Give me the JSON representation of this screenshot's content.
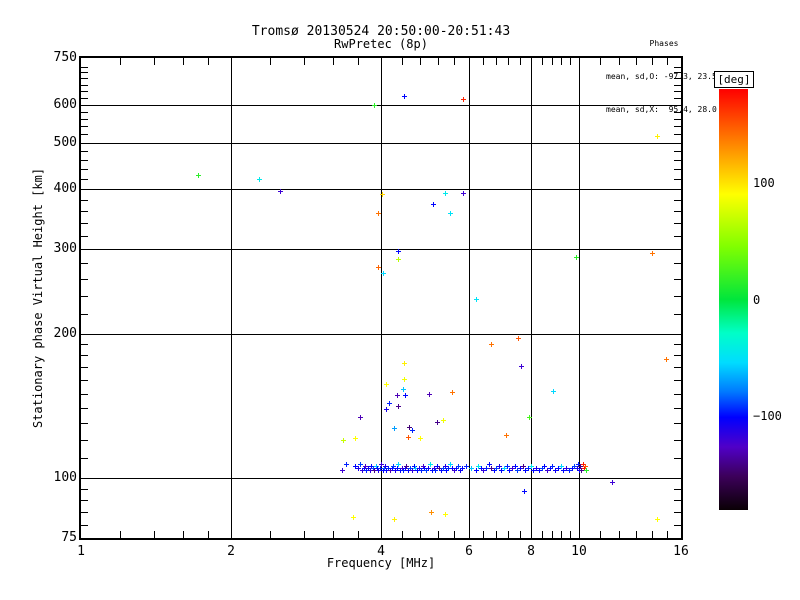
{
  "title": {
    "line1": "Tromsø 20130524 20:50:00-20:51:43",
    "line2": "RwPretec (8p)"
  },
  "stats": {
    "header": "Phases",
    "line_o": "mean, sd,O: -97.3, 23.5",
    "line_x": "mean, sd,X:  95.4, 28.0"
  },
  "chart_data": {
    "type": "scatter",
    "title": "Tromsø 20130524 20:50:00-20:51:43",
    "subtitle": "RwPretec (8p)",
    "xlabel": "Frequency [MHz]",
    "ylabel": "Stationary phase Virtual Height [km]",
    "x_scale": "log",
    "y_scale": "log",
    "xlim": [
      1,
      16
    ],
    "ylim": [
      75,
      750
    ],
    "x_ticks_major": [
      1,
      2,
      4,
      6,
      8,
      10,
      16
    ],
    "x_ticks_minor": [
      1.2,
      1.4,
      1.6,
      1.8,
      2.4,
      2.8,
      3.2,
      3.6,
      4.4,
      4.8,
      5.2,
      5.6,
      6.4,
      6.8,
      7.2,
      7.6,
      8.4,
      8.8,
      9.2,
      9.6,
      11,
      12,
      13,
      14,
      15
    ],
    "y_ticks_major": [
      75,
      100,
      200,
      300,
      400,
      500,
      600,
      750
    ],
    "y_ticks_minor": [
      80,
      85,
      90,
      95,
      110,
      120,
      130,
      140,
      150,
      160,
      170,
      180,
      190,
      220,
      240,
      260,
      280,
      320,
      340,
      360,
      380,
      420,
      440,
      460,
      480,
      520,
      540,
      560,
      580,
      620,
      640,
      660,
      680,
      700,
      720
    ],
    "grid_x": [
      2,
      4,
      6,
      8,
      10
    ],
    "grid_y": [
      100,
      200,
      300,
      400,
      500,
      600
    ],
    "colorbar": {
      "label": "[deg]",
      "min": -180,
      "max": 180,
      "ticks": [
        100,
        0,
        -100
      ],
      "stops": [
        [
          0.0,
          "#ff0000"
        ],
        [
          0.125,
          "#ff8000"
        ],
        [
          0.25,
          "#ffff00"
        ],
        [
          0.375,
          "#80ff00"
        ],
        [
          0.5,
          "#00e63c"
        ],
        [
          0.58,
          "#00ffc8"
        ],
        [
          0.65,
          "#00dcff"
        ],
        [
          0.72,
          "#0078ff"
        ],
        [
          0.78,
          "#0000ff"
        ],
        [
          0.85,
          "#5000c8"
        ],
        [
          0.92,
          "#3c005a"
        ],
        [
          1.0,
          "#0a0005"
        ]
      ]
    },
    "points_format": [
      "frequency_MHz",
      "virtual_height_km",
      "phase_deg"
    ],
    "points": [
      [
        1.72,
        428,
        15
      ],
      [
        2.28,
        420,
        -45
      ],
      [
        2.51,
        397,
        -120
      ],
      [
        4.45,
        625,
        -100
      ],
      [
        5.83,
        617,
        168
      ],
      [
        3.88,
        600,
        15
      ],
      [
        14.3,
        515,
        95
      ],
      [
        14.0,
        295,
        140
      ],
      [
        9.83,
        289,
        15
      ],
      [
        14.9,
        177,
        140
      ],
      [
        4.02,
        390,
        105
      ],
      [
        5.38,
        392,
        -45
      ],
      [
        5.83,
        392,
        -120
      ],
      [
        5.09,
        373,
        -100
      ],
      [
        5.49,
        356,
        -50
      ],
      [
        3.95,
        356,
        140
      ],
      [
        4.33,
        297,
        -100
      ],
      [
        4.33,
        286,
        65
      ],
      [
        3.95,
        275,
        145
      ],
      [
        4.04,
        268,
        -55
      ],
      [
        6.2,
        236,
        -50
      ],
      [
        7.52,
        196,
        150
      ],
      [
        6.66,
        190,
        140
      ],
      [
        4.45,
        174,
        95
      ],
      [
        4.1,
        157,
        90
      ],
      [
        4.45,
        161,
        85
      ],
      [
        4.43,
        153,
        -60
      ],
      [
        4.3,
        149,
        -130
      ],
      [
        4.47,
        149,
        -100
      ],
      [
        4.99,
        150,
        -130
      ],
      [
        5.55,
        151,
        140
      ],
      [
        4.16,
        143,
        -95
      ],
      [
        3.63,
        134,
        -130
      ],
      [
        4.1,
        139,
        -110
      ],
      [
        4.33,
        141,
        -140
      ],
      [
        4.55,
        128,
        -145
      ],
      [
        5.17,
        131,
        -140
      ],
      [
        5.32,
        132,
        85
      ],
      [
        4.24,
        127,
        -70
      ],
      [
        4.62,
        126,
        -95
      ],
      [
        7.93,
        134,
        25
      ],
      [
        7.13,
        123,
        140
      ],
      [
        8.86,
        152,
        -55
      ],
      [
        7.64,
        171,
        -120
      ],
      [
        3.55,
        121,
        90
      ],
      [
        4.54,
        122,
        150
      ],
      [
        3.36,
        120,
        70
      ],
      [
        4.8,
        121,
        90
      ],
      [
        7.74,
        94,
        -100
      ],
      [
        3.52,
        83,
        90
      ],
      [
        4.24,
        82,
        95
      ],
      [
        5.04,
        85,
        130
      ],
      [
        5.38,
        84,
        90
      ],
      [
        14.3,
        82,
        90
      ],
      [
        11.65,
        98,
        -120
      ],
      [
        3.41,
        107,
        -95
      ],
      [
        3.34,
        104,
        -120
      ],
      [
        3.55,
        106,
        -100
      ],
      [
        3.6,
        105,
        -110
      ],
      [
        3.63,
        107,
        -90
      ],
      [
        3.66,
        104,
        -115
      ],
      [
        3.7,
        105,
        -100
      ],
      [
        3.72,
        106,
        -125
      ],
      [
        3.74,
        104,
        -95
      ],
      [
        3.77,
        105,
        -105
      ],
      [
        3.8,
        104,
        -115
      ],
      [
        3.82,
        106,
        -100
      ],
      [
        3.85,
        105,
        -90
      ],
      [
        3.87,
        104,
        -140
      ],
      [
        3.9,
        106,
        -60
      ],
      [
        3.92,
        105,
        -100
      ],
      [
        3.95,
        104,
        -110
      ],
      [
        3.98,
        105,
        -95
      ],
      [
        4.0,
        107,
        -120
      ],
      [
        4.03,
        104,
        -100
      ],
      [
        4.06,
        105,
        -85
      ],
      [
        4.08,
        106,
        -110
      ],
      [
        4.1,
        104,
        -100
      ],
      [
        4.13,
        105,
        -95
      ],
      [
        4.17,
        104,
        -130
      ],
      [
        4.2,
        105,
        -100
      ],
      [
        4.23,
        106,
        -90
      ],
      [
        4.27,
        104,
        -110
      ],
      [
        4.3,
        105,
        -100
      ],
      [
        4.33,
        107,
        -55
      ],
      [
        4.37,
        104,
        -100
      ],
      [
        4.4,
        105,
        -120
      ],
      [
        4.43,
        104,
        -95
      ],
      [
        4.47,
        105,
        -105
      ],
      [
        4.5,
        106,
        -140
      ],
      [
        4.54,
        104,
        -100
      ],
      [
        4.58,
        105,
        -90
      ],
      [
        4.62,
        104,
        -115
      ],
      [
        4.65,
        106,
        -100
      ],
      [
        4.69,
        105,
        -60
      ],
      [
        4.73,
        104,
        -100
      ],
      [
        4.77,
        105,
        -110
      ],
      [
        4.81,
        104,
        -95
      ],
      [
        4.85,
        106,
        -125
      ],
      [
        4.89,
        105,
        -100
      ],
      [
        4.93,
        104,
        -90
      ],
      [
        4.97,
        105,
        -105
      ],
      [
        5.02,
        107,
        -45
      ],
      [
        5.06,
        104,
        -100
      ],
      [
        5.1,
        105,
        -115
      ],
      [
        5.14,
        104,
        -95
      ],
      [
        5.19,
        106,
        -100
      ],
      [
        5.23,
        105,
        -140
      ],
      [
        5.27,
        104,
        -100
      ],
      [
        5.32,
        105,
        -90
      ],
      [
        5.37,
        106,
        -110
      ],
      [
        5.41,
        104,
        -100
      ],
      [
        5.46,
        105,
        -95
      ],
      [
        5.51,
        107,
        -55
      ],
      [
        5.56,
        105,
        -100
      ],
      [
        5.61,
        104,
        -120
      ],
      [
        5.66,
        105,
        -100
      ],
      [
        5.71,
        106,
        -90
      ],
      [
        5.76,
        104,
        -105
      ],
      [
        5.81,
        105,
        -100
      ],
      [
        5.92,
        106,
        -95
      ],
      [
        6.06,
        105,
        -60
      ],
      [
        6.2,
        104,
        -100
      ],
      [
        6.27,
        106,
        -45
      ],
      [
        6.35,
        105,
        -100
      ],
      [
        6.42,
        104,
        -115
      ],
      [
        6.5,
        105,
        -95
      ],
      [
        6.58,
        107,
        -100
      ],
      [
        6.66,
        105,
        -140
      ],
      [
        6.74,
        104,
        -100
      ],
      [
        6.82,
        105,
        -90
      ],
      [
        6.9,
        106,
        -110
      ],
      [
        6.98,
        104,
        -100
      ],
      [
        7.07,
        105,
        -55
      ],
      [
        7.15,
        106,
        -95
      ],
      [
        7.24,
        104,
        -100
      ],
      [
        7.33,
        105,
        -120
      ],
      [
        7.42,
        106,
        -100
      ],
      [
        7.51,
        104,
        -90
      ],
      [
        7.6,
        105,
        -105
      ],
      [
        7.7,
        106,
        -140
      ],
      [
        7.79,
        104,
        -100
      ],
      [
        7.89,
        105,
        -95
      ],
      [
        7.99,
        106,
        -45
      ],
      [
        8.09,
        104,
        -100
      ],
      [
        8.19,
        105,
        -110
      ],
      [
        8.29,
        104,
        -100
      ],
      [
        8.4,
        105,
        -90
      ],
      [
        8.5,
        106,
        -100
      ],
      [
        8.61,
        104,
        -120
      ],
      [
        8.72,
        105,
        -100
      ],
      [
        8.83,
        106,
        -95
      ],
      [
        8.94,
        104,
        -105
      ],
      [
        9.06,
        105,
        -100
      ],
      [
        9.17,
        106,
        -55
      ],
      [
        9.29,
        104,
        -100
      ],
      [
        9.41,
        105,
        -115
      ],
      [
        9.53,
        104,
        -95
      ],
      [
        9.65,
        105,
        -100
      ],
      [
        9.77,
        106,
        -90
      ],
      [
        9.9,
        105,
        -110
      ],
      [
        10.0,
        104,
        -100
      ],
      [
        10.15,
        107,
        170
      ],
      [
        10.2,
        105,
        175
      ],
      [
        10.25,
        106,
        150
      ],
      [
        10.1,
        104,
        -140
      ],
      [
        10.3,
        104,
        15
      ],
      [
        9.95,
        107,
        -95
      ],
      [
        10.05,
        106,
        -140
      ]
    ]
  }
}
